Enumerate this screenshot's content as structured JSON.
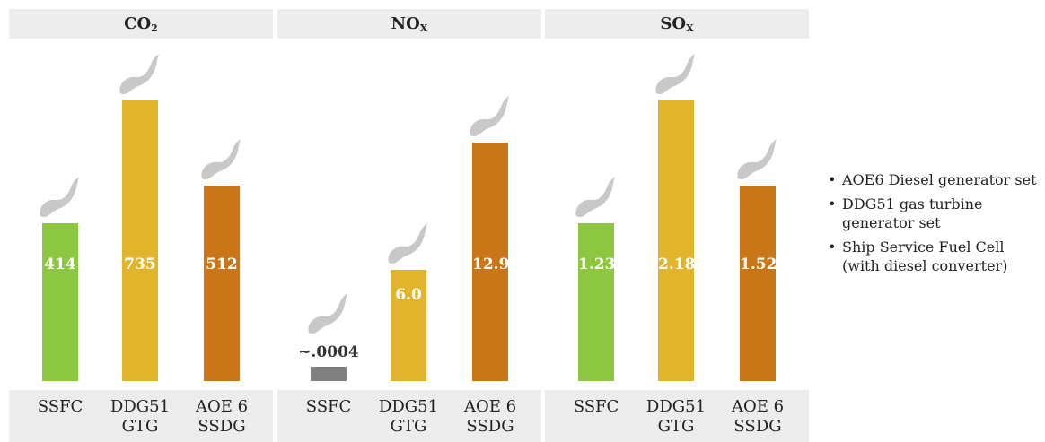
{
  "chart_data": [
    {
      "type": "bar",
      "title": "CO",
      "title_sub": "2",
      "categories": [
        "SSFC",
        "DDG51\nGTG",
        "AOE 6\nSSDG"
      ],
      "values": [
        414,
        735,
        512
      ],
      "value_labels": [
        "414",
        "735",
        "512"
      ],
      "colors": [
        "#8dc63f",
        "#e2b42c",
        "#c97618"
      ],
      "ylim": [
        0,
        775
      ]
    },
    {
      "type": "bar",
      "title": "NO",
      "title_sub": "X",
      "categories": [
        "SSFC",
        "DDG51\nGTG",
        "AOE 6\nSSDG"
      ],
      "values": [
        0.0004,
        6.0,
        12.9
      ],
      "value_labels": [
        "~.0004",
        "6.0",
        "12.9"
      ],
      "colors": [
        "#808080",
        "#e2b42c",
        "#c97618"
      ],
      "ylim": [
        0,
        16.0
      ]
    },
    {
      "type": "bar",
      "title": "SO",
      "title_sub": "X",
      "categories": [
        "SSFC",
        "DDG51\nGTG",
        "AOE 6\nSSDG"
      ],
      "values": [
        1.23,
        2.18,
        1.52
      ],
      "value_labels": [
        "1.23",
        "2.18",
        "1.52"
      ],
      "colors": [
        "#8dc63f",
        "#e2b42c",
        "#c97618"
      ],
      "ylim": [
        0,
        2.3
      ]
    }
  ],
  "legend": {
    "items": [
      "AOE6 Diesel generator set",
      "DDG51 gas turbine generator set",
      "Ship Service Fuel Cell (with diesel converter)"
    ]
  },
  "colors": {
    "panel_bg": "#ececec",
    "smoke": "#c8c8c8"
  }
}
